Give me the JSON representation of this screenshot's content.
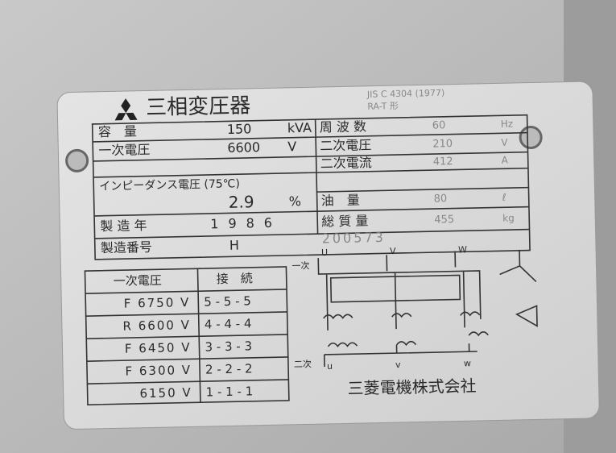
{
  "nameplate": {
    "title": "三相変圧器",
    "standard": "JIS C 4304 (1977)",
    "model": "RA-T 形",
    "left_rows": [
      {
        "label": "容　量",
        "value": "150",
        "unit": "kVA"
      },
      {
        "label": "一次電圧",
        "value": "6600",
        "unit": "V"
      },
      {
        "label": "インピーダンス電圧 (75℃)",
        "value": "2.9",
        "unit": "%"
      },
      {
        "label": "製 造 年",
        "value": "1986"
      },
      {
        "label": "製造番号",
        "value": "H",
        "serial": "200573"
      }
    ],
    "right_rows": [
      {
        "label": "周 波 数",
        "value": "60",
        "unit": "Hz"
      },
      {
        "label": "二次電圧",
        "value": "210",
        "unit": "V"
      },
      {
        "label": "二次電流",
        "value": "412",
        "unit": "A"
      },
      {
        "label": "油　量",
        "value": "80",
        "unit": "ℓ"
      },
      {
        "label": "総 質 量",
        "value": "455",
        "unit": "kg"
      }
    ],
    "tap_table": {
      "header": [
        "一次電圧",
        "接　続"
      ],
      "rows": [
        [
          "F 6750 V",
          "5 - 5 - 5"
        ],
        [
          "R 6600 V",
          "4 - 4 - 4"
        ],
        [
          "F 6450 V",
          "3 - 3 - 3"
        ],
        [
          "F 6300 V",
          "2 - 2 - 2"
        ],
        [
          "6150 V",
          "1 - 1 - 1"
        ]
      ]
    },
    "diagram": {
      "primary": "一次",
      "secondary": "二次",
      "primary_terminals": [
        "U",
        "V",
        "W"
      ],
      "secondary_terminals": [
        "u",
        "v",
        "w"
      ]
    },
    "manufacturer": "三菱電機株式会社"
  }
}
